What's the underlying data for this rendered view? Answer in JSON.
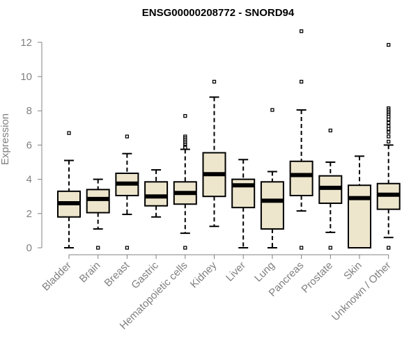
{
  "chart_data": {
    "type": "boxplot",
    "title": "ENSG00000208772 - SNORD94",
    "xlabel": "",
    "ylabel": "Expression",
    "ylim": [
      0,
      12.5
    ],
    "yticks": [
      "0",
      "2",
      "4",
      "6",
      "8",
      "10",
      "12"
    ],
    "grid": false,
    "colors": {
      "box_fill": "#ede6cd",
      "box_stroke": "#000000",
      "axis": "#808080"
    },
    "categories": [
      "Bladder",
      "Brain",
      "Breast",
      "Gastric",
      "Hematopoietic cells",
      "Kidney",
      "Liver",
      "Lung",
      "Pancreas",
      "Prostate",
      "Skin",
      "Unknown / Other"
    ],
    "boxes": [
      {
        "category": "Bladder",
        "min": 0,
        "q1": 1.8,
        "median": 2.6,
        "q3": 3.3,
        "max": 5.1,
        "outliers": [
          6.7
        ]
      },
      {
        "category": "Brain",
        "min": 1.1,
        "q1": 2.05,
        "median": 2.85,
        "q3": 3.4,
        "max": 4.0,
        "outliers": [
          0
        ]
      },
      {
        "category": "Breast",
        "min": 1.95,
        "q1": 3.05,
        "median": 3.75,
        "q3": 4.35,
        "max": 5.5,
        "outliers": [
          6.5,
          0
        ]
      },
      {
        "category": "Gastric",
        "min": 1.8,
        "q1": 2.45,
        "median": 3.0,
        "q3": 3.85,
        "max": 4.55,
        "outliers": []
      },
      {
        "category": "Hematopoietic cells",
        "min": 0.85,
        "q1": 2.55,
        "median": 3.2,
        "q3": 3.85,
        "max": 5.75,
        "outliers": [
          7.7,
          6.5,
          6.4,
          6.3,
          6.2,
          6.1,
          6.0,
          5.9,
          5.85,
          0
        ]
      },
      {
        "category": "Kidney",
        "min": 1.25,
        "q1": 3.0,
        "median": 4.3,
        "q3": 5.55,
        "max": 8.8,
        "outliers": [
          9.7
        ]
      },
      {
        "category": "Liver",
        "min": 0,
        "q1": 2.35,
        "median": 3.65,
        "q3": 4.0,
        "max": 5.15,
        "outliers": []
      },
      {
        "category": "Lung",
        "min": 0,
        "q1": 1.1,
        "median": 2.75,
        "q3": 3.85,
        "max": 4.45,
        "outliers": [
          8.05
        ]
      },
      {
        "category": "Pancreas",
        "min": 2.15,
        "q1": 3.05,
        "median": 4.25,
        "q3": 5.05,
        "max": 8.05,
        "outliers": [
          12.65,
          9.7,
          0
        ]
      },
      {
        "category": "Prostate",
        "min": 0.9,
        "q1": 2.6,
        "median": 3.5,
        "q3": 4.2,
        "max": 5.0,
        "outliers": [
          6.85,
          0
        ]
      },
      {
        "category": "Skin",
        "min": 0,
        "q1": 0,
        "median": 2.9,
        "q3": 3.65,
        "max": 5.35,
        "outliers": []
      },
      {
        "category": "Unknown / Other",
        "min": 0.6,
        "q1": 2.25,
        "median": 3.1,
        "q3": 3.75,
        "max": 6.0,
        "outliers": [
          11.85,
          8.15,
          8.05,
          7.95,
          7.85,
          7.75,
          7.65,
          7.5,
          7.3,
          7.1,
          6.95,
          6.75,
          6.5,
          6.2,
          0
        ]
      }
    ]
  }
}
